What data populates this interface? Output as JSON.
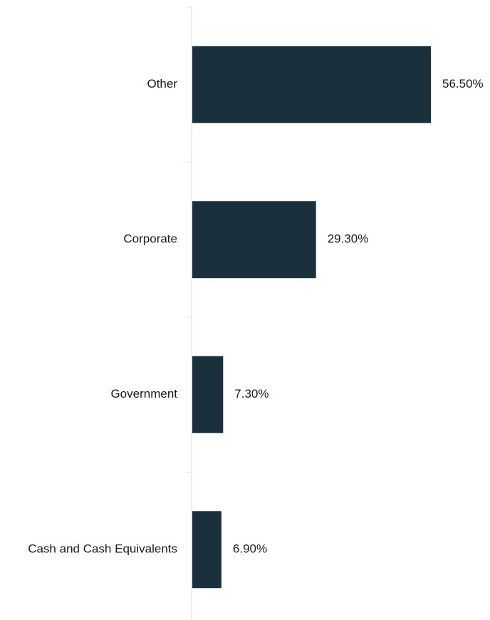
{
  "chart_data": {
    "type": "bar",
    "orientation": "horizontal",
    "categories": [
      "Other",
      "Corporate",
      "Government",
      "Cash and Cash Equivalents"
    ],
    "values": [
      56.5,
      29.3,
      7.3,
      6.9
    ],
    "value_labels": [
      "56.50%",
      "29.30%",
      "7.30%",
      "6.90%"
    ],
    "title": "",
    "xlabel": "",
    "ylabel": "",
    "xlim": [
      0,
      60
    ],
    "grid": false,
    "legend": "none",
    "bar_color": "#1b303d",
    "axis_color": "#d9d9d9"
  }
}
